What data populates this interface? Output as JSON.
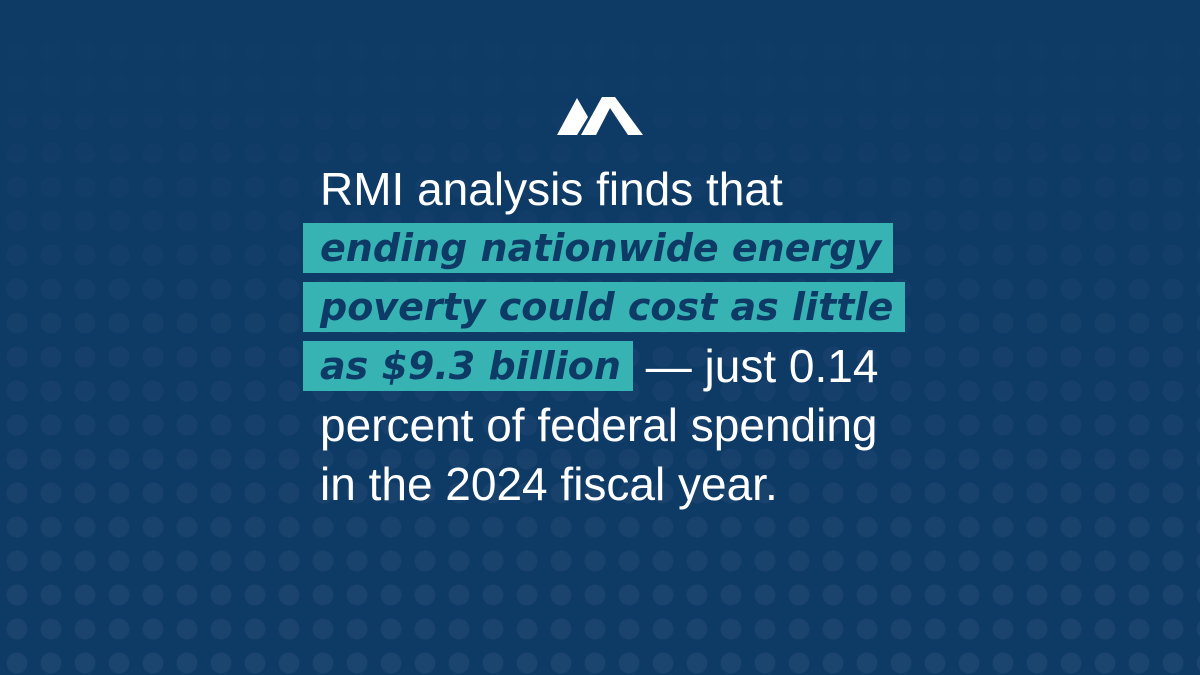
{
  "colors": {
    "background": "#0e3a66",
    "highlight": "#37b3b4",
    "text": "#ffffff",
    "highlight_text": "#0e3a66"
  },
  "logo": {
    "icon": "rmi-mountain-logo"
  },
  "statement": {
    "line1": "RMI analysis finds that",
    "line2_highlight": "ending nationwide energy",
    "line3_highlight": "poverty could cost as little",
    "line4_highlight": "as $9.3 billion",
    "line4_plain": " — just 0.14",
    "line5": "percent of federal spending",
    "line6": "in the 2024 fiscal year."
  }
}
